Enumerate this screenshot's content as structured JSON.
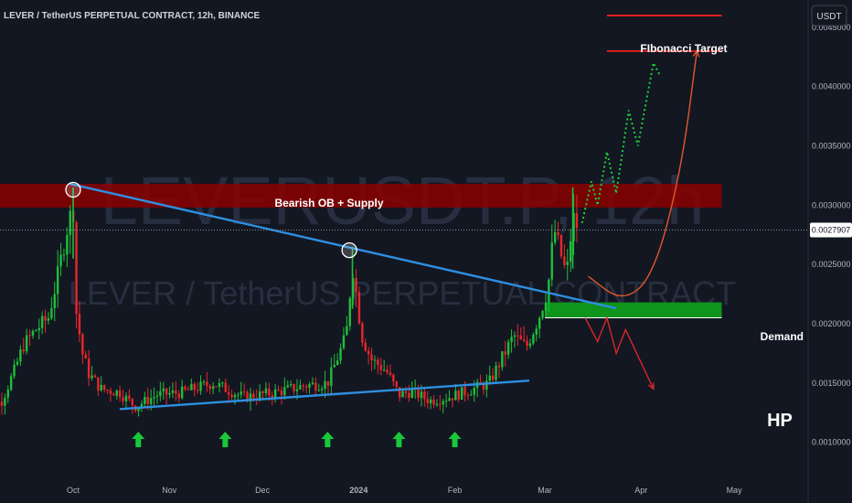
{
  "header": {
    "title": "LEVER / TetherUS PERPETUAL CONTRACT, 12h, BINANCE",
    "currency": "USDT"
  },
  "watermark": {
    "symbol": "LEVERUSDT.P, 12h",
    "name": "LEVER / TetherUS PERPETUAL CONTRACT"
  },
  "annotations": {
    "supply": "Bearish OB + Supply",
    "target": "FIbonacci Target",
    "demand": "Demand",
    "brand": "HP"
  },
  "colors": {
    "background": "#131722",
    "up": "#26a69a",
    "up_candle": "#1fbf3a",
    "down_candle": "#e8262b",
    "trendline": "#2e8fe0",
    "supply_zone": "#8b0000",
    "demand_zone": "#0f9b1c",
    "target_line": "#e01e1e",
    "arrow_up": "#19c93a",
    "projection_green": "#1fd13a",
    "projection_red": "#d8262b",
    "projection_orange": "#e3582a"
  },
  "chart_data": {
    "type": "candlestick",
    "symbol": "LEVERUSDT.P",
    "timeframe": "12h",
    "exchange": "BINANCE",
    "current_price": "0.0027907",
    "y_ticks": [
      "0.0045000",
      "0.0040000",
      "0.0035000",
      "0.0030000",
      "0.0025000",
      "0.0020000",
      "0.0015000",
      "0.0010000"
    ],
    "y_tick_values": [
      0.0045,
      0.004,
      0.0035,
      0.003,
      0.0025,
      0.002,
      0.0015,
      0.001
    ],
    "ylim": [
      0.00075,
      0.0047
    ],
    "x_ticks": [
      "Oct",
      "Nov",
      "Dec",
      "2024",
      "Feb",
      "Mar",
      "Apr",
      "May"
    ],
    "x_tick_dates": [
      "2023-10-01",
      "2023-11-01",
      "2023-12-01",
      "2024-01-01",
      "2024-02-01",
      "2024-03-01",
      "2024-04-01",
      "2024-05-01"
    ],
    "price_path": [
      [
        "2023-09-01",
        0.00145
      ],
      [
        "2023-09-04",
        0.0013
      ],
      [
        "2023-09-08",
        0.00135
      ],
      [
        "2023-09-12",
        0.0016
      ],
      [
        "2023-09-15",
        0.00182
      ],
      [
        "2023-09-19",
        0.00195
      ],
      [
        "2023-09-23",
        0.00205
      ],
      [
        "2023-09-26",
        0.0024
      ],
      [
        "2023-09-29",
        0.0028
      ],
      [
        "2023-10-01",
        0.003
      ],
      [
        "2023-10-02",
        0.0021
      ],
      [
        "2023-10-04",
        0.00175
      ],
      [
        "2023-10-06",
        0.00158
      ],
      [
        "2023-10-10",
        0.00145
      ],
      [
        "2023-10-16",
        0.00142
      ],
      [
        "2023-10-21",
        0.0013
      ],
      [
        "2023-10-28",
        0.0014
      ],
      [
        "2023-11-05",
        0.00142
      ],
      [
        "2023-11-15",
        0.0015
      ],
      [
        "2023-11-25",
        0.00138
      ],
      [
        "2023-12-05",
        0.00142
      ],
      [
        "2023-12-15",
        0.00148
      ],
      [
        "2023-12-22",
        0.0015
      ],
      [
        "2023-12-25",
        0.0017
      ],
      [
        "2023-12-28",
        0.0019
      ],
      [
        "2023-12-30",
        0.0025
      ],
      [
        "2024-01-02",
        0.0019
      ],
      [
        "2024-01-05",
        0.0017
      ],
      [
        "2024-01-10",
        0.0016
      ],
      [
        "2024-01-14",
        0.0014
      ],
      [
        "2024-01-18",
        0.00143
      ],
      [
        "2024-01-24",
        0.00135
      ],
      [
        "2024-01-30",
        0.00138
      ],
      [
        "2024-02-05",
        0.00143
      ],
      [
        "2024-02-12",
        0.0015
      ],
      [
        "2024-02-16",
        0.0017
      ],
      [
        "2024-02-20",
        0.0019
      ],
      [
        "2024-02-24",
        0.0018
      ],
      [
        "2024-02-28",
        0.00205
      ],
      [
        "2024-03-02",
        0.0023
      ],
      [
        "2024-03-04",
        0.0028
      ],
      [
        "2024-03-06",
        0.0026
      ],
      [
        "2024-03-08",
        0.0024
      ],
      [
        "2024-03-10",
        0.0029
      ],
      [
        "2024-03-12",
        0.00279
      ]
    ],
    "spikes": [
      {
        "date": "2023-10-01",
        "high": 0.00315
      },
      {
        "date": "2023-12-30",
        "high": 0.00265
      },
      {
        "date": "2024-03-10",
        "high": 0.00315
      }
    ],
    "zones": [
      {
        "name": "Bearish OB + Supply",
        "from_date": "2023-09-01",
        "to_date": "2024-04-27",
        "top": 0.00318,
        "bottom": 0.00298
      },
      {
        "name": "Demand",
        "from_date": "2024-03-01",
        "to_date": "2024-04-27",
        "top": 0.00218,
        "bottom": 0.00205
      }
    ],
    "trendlines": [
      {
        "name": "descending",
        "from": [
          "2023-09-30",
          0.00318
        ],
        "to": [
          "2024-03-24",
          0.00213
        ]
      },
      {
        "name": "ascending-support",
        "from": [
          "2023-10-16",
          0.00128
        ],
        "to": [
          "2024-02-25",
          0.00152
        ]
      }
    ],
    "target_levels": [
      {
        "label": "FIbonacci Target",
        "from_date": "2024-03-21",
        "to_date": "2024-04-27",
        "value": 0.0043
      },
      {
        "label": "",
        "from_date": "2024-03-21",
        "to_date": "2024-04-27",
        "value": 0.0046
      }
    ],
    "bullish_projection": [
      [
        "2024-03-13",
        0.00285
      ],
      [
        "2024-03-16",
        0.0032
      ],
      [
        "2024-03-18",
        0.003
      ],
      [
        "2024-03-21",
        0.00345
      ],
      [
        "2024-03-24",
        0.0031
      ],
      [
        "2024-03-28",
        0.0038
      ],
      [
        "2024-03-31",
        0.0035
      ],
      [
        "2024-04-05",
        0.0042
      ],
      [
        "2024-04-07",
        0.0041
      ]
    ],
    "bearish_projection": [
      [
        "2024-03-14",
        0.00205
      ],
      [
        "2024-03-18",
        0.00185
      ],
      [
        "2024-03-21",
        0.00205
      ],
      [
        "2024-03-24",
        0.00175
      ],
      [
        "2024-03-27",
        0.00195
      ],
      [
        "2024-04-05",
        0.00145
      ]
    ],
    "curve_projection": [
      [
        "2024-03-15",
        0.0024
      ],
      [
        "2024-03-26",
        0.00218
      ],
      [
        "2024-04-05",
        0.0024
      ],
      [
        "2024-04-14",
        0.0033
      ],
      [
        "2024-04-19",
        0.0043
      ]
    ],
    "highlight_circles": [
      {
        "date": "2023-10-01",
        "value": 0.00313
      },
      {
        "date": "2023-12-29",
        "value": 0.00262
      }
    ],
    "support_arrows": [
      "2023-10-22",
      "2023-11-19",
      "2023-12-22",
      "2024-01-14",
      "2024-02-01"
    ],
    "grid": false,
    "legend": "none"
  }
}
